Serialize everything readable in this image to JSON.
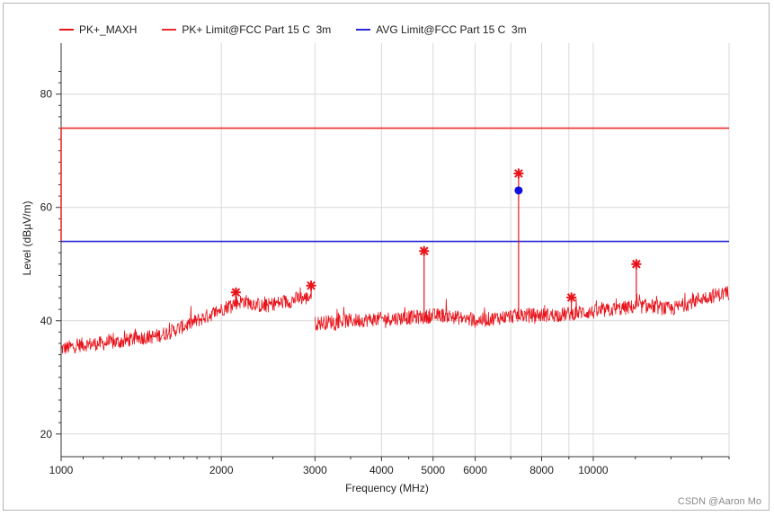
{
  "watermark": "CSDN @Aaron Mo",
  "chart_data": {
    "type": "line",
    "xscale": "log",
    "xlabel": "Frequency (MHz)",
    "ylabel": "Level (dBµV/m)",
    "xlim": [
      1000,
      18000
    ],
    "ylim": [
      16,
      89
    ],
    "grid": true,
    "legend_position": "top-left",
    "x_ticks": [
      {
        "value": 1000,
        "label": "1000"
      },
      {
        "value": 2000,
        "label": "2000"
      },
      {
        "value": 3000,
        "label": "3000"
      },
      {
        "value": 4000,
        "label": "4000"
      },
      {
        "value": 5000,
        "label": "5000"
      },
      {
        "value": 6000,
        "label": "6000"
      },
      {
        "value": 8000,
        "label": "8000"
      },
      {
        "value": 10000,
        "label": "10000"
      }
    ],
    "x_minor_gridlines": [
      7000,
      9000,
      18000
    ],
    "y_ticks": [
      20,
      40,
      60,
      80
    ],
    "series": [
      {
        "name": "PK+_MAXH",
        "color": "#e8141b",
        "segments": [
          [
            [
              1000,
              35
            ],
            [
              1100,
              35.8
            ],
            [
              1200,
              36
            ],
            [
              1300,
              36.3
            ],
            [
              1400,
              37
            ],
            [
              1500,
              37.2
            ],
            [
              1600,
              38
            ],
            [
              1700,
              39
            ],
            [
              1800,
              40
            ],
            [
              1900,
              41
            ],
            [
              2000,
              42
            ],
            [
              2100,
              43
            ],
            [
              2200,
              43.5
            ],
            [
              2300,
              43
            ],
            [
              2400,
              42.5
            ],
            [
              2500,
              43
            ],
            [
              2600,
              43.2
            ],
            [
              2700,
              43.5
            ],
            [
              2800,
              44
            ],
            [
              2900,
              44
            ],
            [
              2950,
              44.5
            ]
          ],
          [
            [
              3000,
              39.5
            ],
            [
              3200,
              39.8
            ],
            [
              3500,
              40
            ],
            [
              3800,
              40.2
            ],
            [
              4000,
              40.3
            ],
            [
              4400,
              40.5
            ],
            [
              4800,
              40.7
            ],
            [
              5200,
              41
            ],
            [
              5600,
              40.5
            ],
            [
              6000,
              40
            ],
            [
              6500,
              40.4
            ],
            [
              7000,
              40.8
            ],
            [
              7500,
              41
            ],
            [
              8000,
              41
            ],
            [
              8500,
              41
            ],
            [
              9000,
              41.2
            ],
            [
              9500,
              41.5
            ],
            [
              10000,
              41.5
            ],
            [
              11000,
              42
            ],
            [
              12000,
              42.5
            ],
            [
              13000,
              42.5
            ],
            [
              14000,
              42
            ],
            [
              15000,
              43
            ],
            [
              16000,
              44
            ],
            [
              17000,
              44.5
            ],
            [
              18000,
              45
            ]
          ]
        ],
        "noise_amplitude": 1.3
      },
      {
        "name": "PK+ Limit@FCC Part 15 C  3m",
        "color": "#ee2b2b",
        "points": [
          [
            1000,
            54
          ],
          [
            1000,
            74
          ],
          [
            18000,
            74
          ]
        ]
      },
      {
        "name": "AVG Limit@FCC Part 15 C  3m",
        "color": "#2828d8",
        "points": [
          [
            1000,
            54
          ],
          [
            18000,
            54
          ]
        ]
      }
    ],
    "peak_markers": [
      {
        "x": 2130,
        "y": 45,
        "base": 42.5
      },
      {
        "x": 2950,
        "y": 46.2,
        "base": 44
      },
      {
        "x": 4810,
        "y": 52.3,
        "base": 41
      },
      {
        "x": 7240,
        "y": 66,
        "base": 40.5
      },
      {
        "x": 9100,
        "y": 44.1,
        "base": 41
      },
      {
        "x": 12050,
        "y": 50,
        "base": 42.5
      }
    ],
    "avg_markers": [
      {
        "x": 7240,
        "y": 63
      }
    ]
  }
}
